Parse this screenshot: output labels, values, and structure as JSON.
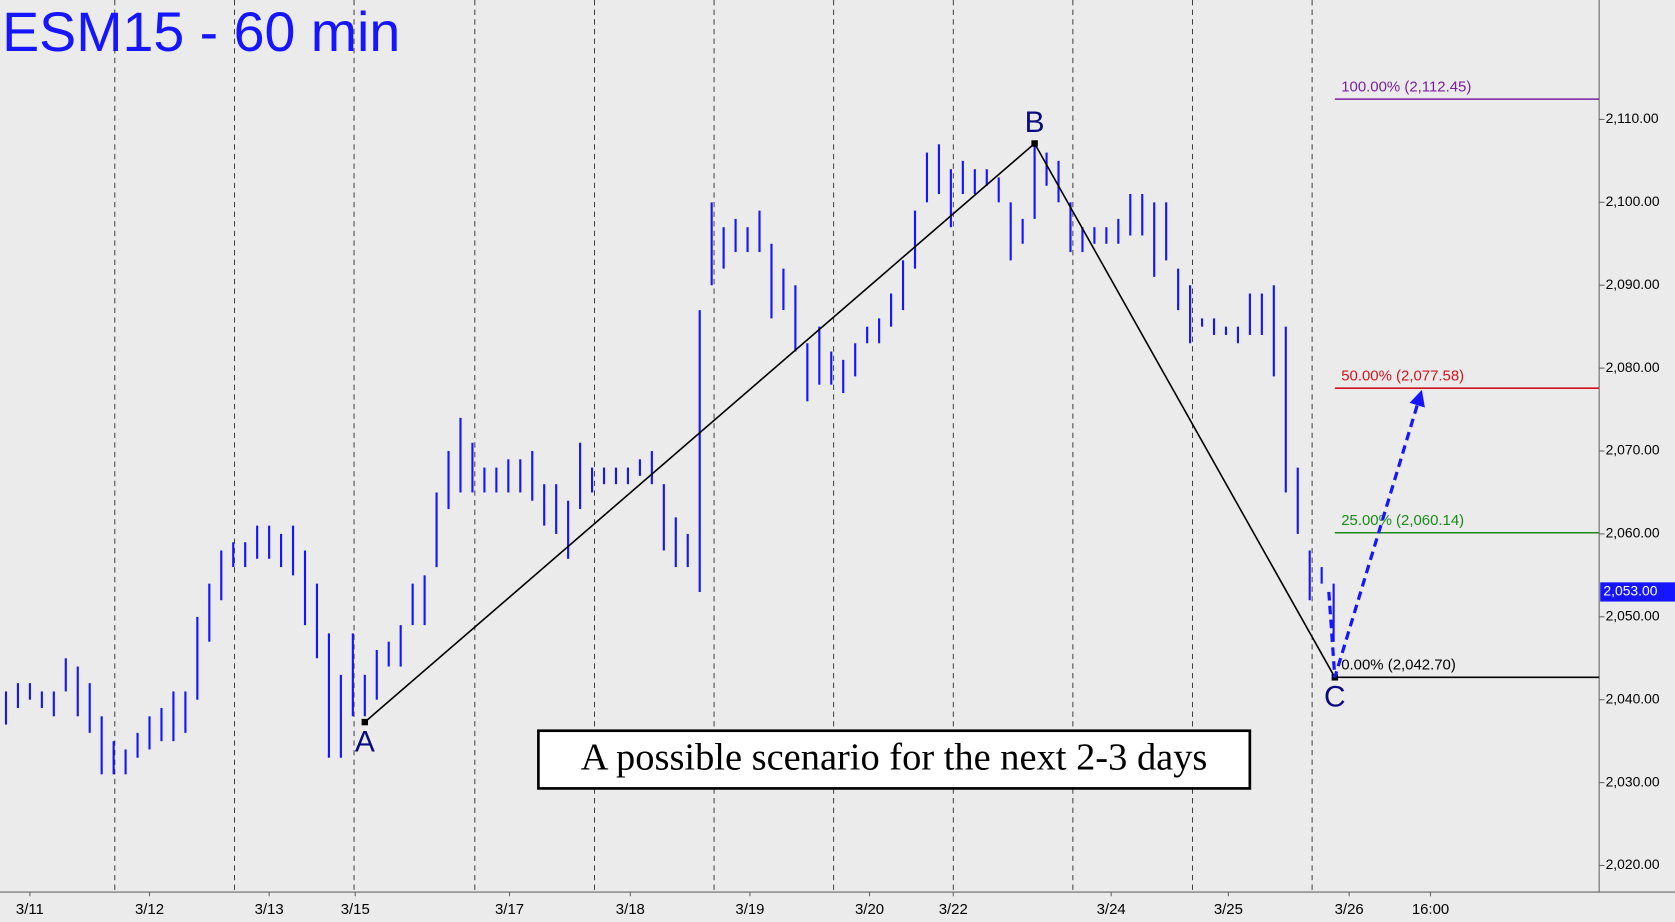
{
  "chart_data": {
    "type": "range-bar",
    "title": "ESM15 - 60 min",
    "annotation": "A possible scenario for the next 2-3 days",
    "color": "#1515ff",
    "xlim": [
      0,
      133.7
    ],
    "ylim": [
      2016.8,
      2124.4
    ],
    "xticks": [
      {
        "value": 2.5,
        "label": "3/11"
      },
      {
        "value": 12.5,
        "label": "3/12"
      },
      {
        "value": 22.5,
        "label": "3/13"
      },
      {
        "value": 29.7,
        "label": "3/15"
      },
      {
        "value": 42.6,
        "label": "3/17"
      },
      {
        "value": 52.7,
        "label": "3/18"
      },
      {
        "value": 62.7,
        "label": "3/19"
      },
      {
        "value": 72.7,
        "label": "3/20"
      },
      {
        "value": 79.7,
        "label": "3/22"
      },
      {
        "value": 92.9,
        "label": "3/24"
      },
      {
        "value": 102.7,
        "label": "3/25"
      },
      {
        "value": 112.8,
        "label": "3/26"
      },
      {
        "value": 119.6,
        "label": "16:00"
      }
    ],
    "day_separators": [
      9.6,
      19.6,
      29.6,
      39.7,
      49.7,
      59.7,
      69.7,
      79.7,
      89.7,
      99.7,
      109.7
    ],
    "yticks": [
      {
        "value": 2020,
        "label": "2,020.00"
      },
      {
        "value": 2030,
        "label": "2,030.00"
      },
      {
        "value": 2040,
        "label": "2,040.00"
      },
      {
        "value": 2050,
        "label": "2,050.00"
      },
      {
        "value": 2060,
        "label": "2,060.00"
      },
      {
        "value": 2070,
        "label": "2,070.00"
      },
      {
        "value": 2080,
        "label": "2,080.00"
      },
      {
        "value": 2090,
        "label": "2,090.00"
      },
      {
        "value": 2100,
        "label": "2,100.00"
      },
      {
        "value": 2110,
        "label": "2,110.00"
      }
    ],
    "x": [
      0.5,
      1.5,
      2.5,
      3.5,
      4.5,
      5.5,
      6.5,
      7.5,
      8.5,
      9.5,
      10.5,
      11.5,
      12.5,
      13.5,
      14.5,
      15.5,
      16.5,
      17.5,
      18.5,
      19.5,
      20.5,
      21.5,
      22.5,
      23.5,
      24.5,
      25.5,
      26.5,
      27.5,
      28.5,
      29.5,
      30.5,
      31.5,
      32.5,
      33.5,
      34.5,
      35.5,
      36.5,
      37.5,
      38.5,
      39.5,
      40.5,
      41.5,
      42.5,
      43.5,
      44.5,
      45.5,
      46.5,
      47.5,
      48.5,
      49.5,
      50.5,
      51.5,
      52.5,
      53.5,
      54.5,
      55.5,
      56.5,
      57.5,
      58.5,
      59.5,
      60.5,
      61.5,
      62.5,
      63.5,
      64.5,
      65.5,
      66.5,
      67.5,
      68.5,
      69.5,
      70.5,
      71.5,
      72.5,
      73.5,
      74.5,
      75.5,
      76.5,
      77.5,
      78.5,
      79.5,
      80.5,
      81.5,
      82.5,
      83.5,
      84.5,
      85.5,
      86.5,
      87.5,
      88.5,
      89.5,
      90.5,
      91.5,
      92.5,
      93.5,
      94.5,
      95.5,
      96.5,
      97.5,
      98.5,
      99.5,
      100.5,
      101.5,
      102.5,
      103.5,
      104.5,
      105.5,
      106.5,
      107.5,
      108.5,
      109.5,
      110.5,
      111.5
    ],
    "low": [
      2037,
      2039,
      2040,
      2039,
      2038,
      2041,
      2038,
      2036,
      2031,
      2031,
      2031,
      2033,
      2034,
      2035,
      2035,
      2036,
      2040,
      2047,
      2052,
      2056,
      2056,
      2057,
      2057,
      2056,
      2055,
      2049,
      2045,
      2033,
      2033,
      2038,
      2038,
      2040,
      2044,
      2044,
      2049,
      2049,
      2056,
      2063,
      2065,
      2065,
      2065,
      2065,
      2065,
      2065,
      2064,
      2061,
      2060,
      2057,
      2063,
      2065,
      2066,
      2066,
      2066,
      2067,
      2066,
      2058,
      2056,
      2056,
      2053,
      2090,
      2092,
      2094,
      2094,
      2094,
      2086,
      2087,
      2082,
      2076,
      2078,
      2078,
      2077,
      2079,
      2083,
      2083,
      2085,
      2087,
      2092,
      2100,
      2101,
      2097,
      2101,
      2101,
      2102,
      2100,
      2093,
      2095,
      2098,
      2102,
      2100,
      2094,
      2094,
      2095,
      2095,
      2095,
      2096,
      2096,
      2091,
      2093,
      2087,
      2083,
      2085,
      2084,
      2084,
      2083,
      2084,
      2084,
      2079,
      2065,
      2060,
      2052,
      2054,
      2047
    ],
    "high": [
      2041,
      2042,
      2042,
      2041,
      2041,
      2045,
      2044,
      2042,
      2038,
      2035,
      2034,
      2036,
      2038,
      2039,
      2041,
      2041,
      2050,
      2054,
      2058,
      2059,
      2059,
      2061,
      2061,
      2060,
      2061,
      2058,
      2054,
      2048,
      2043,
      2048,
      2043,
      2046,
      2047,
      2049,
      2054,
      2055,
      2065,
      2070,
      2074,
      2071,
      2068,
      2068,
      2069,
      2069,
      2070,
      2066,
      2066,
      2064,
      2071,
      2068,
      2068,
      2068,
      2068,
      2069,
      2070,
      2066,
      2062,
      2060,
      2087,
      2100,
      2097,
      2098,
      2097,
      2099,
      2095,
      2092,
      2090,
      2083,
      2085,
      2082,
      2081,
      2083,
      2085,
      2086,
      2089,
      2093,
      2099,
      2106,
      2107,
      2104,
      2105,
      2104,
      2104,
      2103,
      2100,
      2098,
      2107,
      2106,
      2105,
      2100,
      2097,
      2097,
      2097,
      2098,
      2101,
      2101,
      2100,
      2100,
      2092,
      2090,
      2086,
      2086,
      2085,
      2085,
      2089,
      2089,
      2090,
      2085,
      2068,
      2058,
      2056,
      2054
    ],
    "last_price": {
      "value": 2053,
      "label": "2,053.00"
    },
    "levels": [
      {
        "label": "100.00% (2,112.45)",
        "value": 2112.45,
        "color": "#7a1fa2"
      },
      {
        "label": "50.00% (2,077.58)",
        "value": 2077.58,
        "color": "#d0141c"
      },
      {
        "label": "25.00% (2,060.14)",
        "value": 2060.14,
        "color": "#1a8a1a"
      },
      {
        "label": "0.00% (2,042.70)",
        "value": 2042.7,
        "color": "#000000"
      }
    ],
    "level_start": 111.6,
    "wave": {
      "x": [
        30.5,
        86.5,
        111.6
      ],
      "y": [
        2037.3,
        2107.1,
        2042.7
      ],
      "labels": [
        "A",
        "B",
        "C"
      ]
    },
    "projection": {
      "x": [
        111.1,
        111.6,
        118.8
      ],
      "y": [
        2053,
        2042.7,
        2077
      ]
    }
  }
}
